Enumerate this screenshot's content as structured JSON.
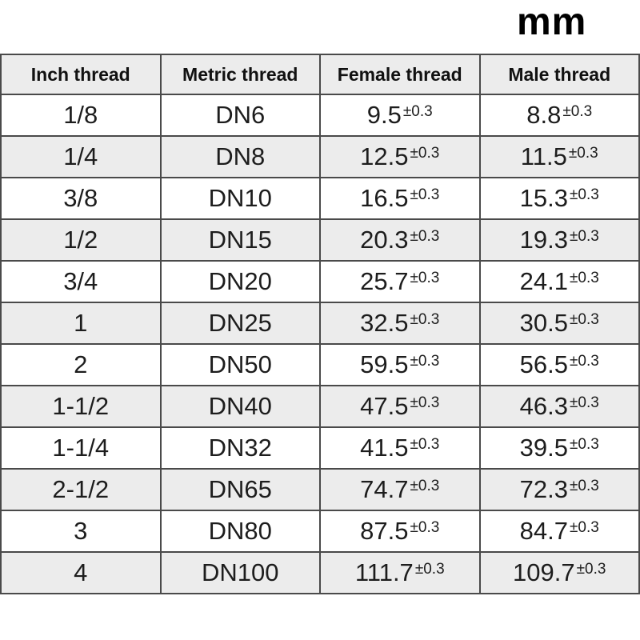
{
  "unit_label": "mm",
  "table": {
    "columns": [
      "Inch thread",
      "Metric thread",
      "Female thread",
      "Male thread"
    ],
    "rows": [
      {
        "inch": "1/8",
        "metric": "DN6",
        "female": "9.5",
        "female_tol": "±0.3",
        "male": "8.8",
        "male_tol": "±0.3"
      },
      {
        "inch": "1/4",
        "metric": "DN8",
        "female": "12.5",
        "female_tol": "±0.3",
        "male": "11.5",
        "male_tol": "±0.3"
      },
      {
        "inch": "3/8",
        "metric": "DN10",
        "female": "16.5",
        "female_tol": "±0.3",
        "male": "15.3",
        "male_tol": "±0.3"
      },
      {
        "inch": "1/2",
        "metric": "DN15",
        "female": "20.3",
        "female_tol": "±0.3",
        "male": "19.3",
        "male_tol": "±0.3"
      },
      {
        "inch": "3/4",
        "metric": "DN20",
        "female": "25.7",
        "female_tol": "±0.3",
        "male": "24.1",
        "male_tol": "±0.3"
      },
      {
        "inch": "1",
        "metric": "DN25",
        "female": "32.5",
        "female_tol": "±0.3",
        "male": "30.5",
        "male_tol": "±0.3"
      },
      {
        "inch": "2",
        "metric": "DN50",
        "female": "59.5",
        "female_tol": "±0.3",
        "male": "56.5",
        "male_tol": "±0.3"
      },
      {
        "inch": "1-1/2",
        "metric": "DN40",
        "female": "47.5",
        "female_tol": "±0.3",
        "male": "46.3",
        "male_tol": "±0.3"
      },
      {
        "inch": "1-1/4",
        "metric": "DN32",
        "female": "41.5",
        "female_tol": "±0.3",
        "male": "39.5",
        "male_tol": "±0.3"
      },
      {
        "inch": "2-1/2",
        "metric": "DN65",
        "female": "74.7",
        "female_tol": "±0.3",
        "male": "72.3",
        "male_tol": "±0.3"
      },
      {
        "inch": "3",
        "metric": "DN80",
        "female": "87.5",
        "female_tol": "±0.3",
        "male": "84.7",
        "male_tol": "±0.3"
      },
      {
        "inch": "4",
        "metric": "DN100",
        "female": "111.7",
        "female_tol": "±0.3",
        "male": "109.7",
        "male_tol": "±0.3"
      }
    ]
  },
  "colors": {
    "border": "#4a4a4a",
    "row_alt_bg": "#ececec",
    "header_bg": "#ececec",
    "text": "#1d1d1d"
  }
}
